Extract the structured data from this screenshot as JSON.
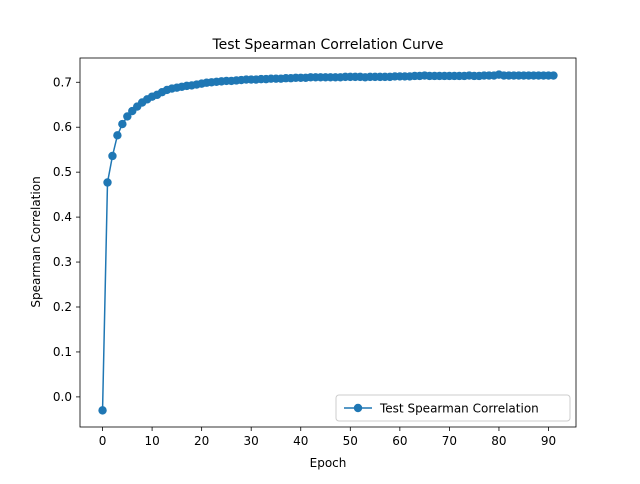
{
  "chart_data": {
    "type": "line",
    "title": "Test Spearman Correlation Curve",
    "xlabel": "Epoch",
    "ylabel": "Spearman Correlation",
    "xlim": [
      -4.55,
      95.55
    ],
    "ylim": [
      -0.067,
      0.754
    ],
    "xticks": [
      0,
      10,
      20,
      30,
      40,
      50,
      60,
      70,
      80,
      90
    ],
    "yticks": [
      0.0,
      0.1,
      0.2,
      0.3,
      0.4,
      0.5,
      0.6,
      0.7
    ],
    "ytick_labels": [
      "0.0",
      "0.1",
      "0.2",
      "0.3",
      "0.4",
      "0.5",
      "0.6",
      "0.7"
    ],
    "grid": false,
    "legend": {
      "position": "lower-right",
      "entries": [
        "Test Spearman Correlation"
      ]
    },
    "series": [
      {
        "name": "Test Spearman Correlation",
        "color": "#1f77b4",
        "marker": "circle",
        "x": [
          0,
          1,
          2,
          3,
          4,
          5,
          6,
          7,
          8,
          9,
          10,
          11,
          12,
          13,
          14,
          15,
          16,
          17,
          18,
          19,
          20,
          21,
          22,
          23,
          24,
          25,
          26,
          27,
          28,
          29,
          30,
          31,
          32,
          33,
          34,
          35,
          36,
          37,
          38,
          39,
          40,
          41,
          42,
          43,
          44,
          45,
          46,
          47,
          48,
          49,
          50,
          51,
          52,
          53,
          54,
          55,
          56,
          57,
          58,
          59,
          60,
          61,
          62,
          63,
          64,
          65,
          66,
          67,
          68,
          69,
          70,
          71,
          72,
          73,
          74,
          75,
          76,
          77,
          78,
          79,
          80,
          81,
          82,
          83,
          84,
          85,
          86,
          87,
          88,
          89,
          90,
          91
        ],
        "values": [
          -0.03,
          0.477,
          0.536,
          0.582,
          0.607,
          0.624,
          0.636,
          0.646,
          0.655,
          0.662,
          0.668,
          0.672,
          0.678,
          0.683,
          0.686,
          0.688,
          0.69,
          0.692,
          0.693,
          0.695,
          0.697,
          0.699,
          0.7,
          0.701,
          0.702,
          0.703,
          0.703,
          0.704,
          0.705,
          0.706,
          0.706,
          0.706,
          0.707,
          0.707,
          0.708,
          0.708,
          0.708,
          0.709,
          0.709,
          0.71,
          0.71,
          0.71,
          0.711,
          0.711,
          0.711,
          0.711,
          0.711,
          0.711,
          0.711,
          0.712,
          0.712,
          0.712,
          0.712,
          0.711,
          0.712,
          0.712,
          0.712,
          0.712,
          0.712,
          0.713,
          0.713,
          0.713,
          0.713,
          0.714,
          0.714,
          0.715,
          0.714,
          0.714,
          0.714,
          0.714,
          0.714,
          0.714,
          0.714,
          0.714,
          0.715,
          0.714,
          0.714,
          0.715,
          0.715,
          0.715,
          0.717,
          0.715,
          0.715,
          0.715,
          0.715,
          0.715,
          0.715,
          0.715,
          0.715,
          0.715,
          0.715,
          0.715
        ]
      }
    ]
  }
}
